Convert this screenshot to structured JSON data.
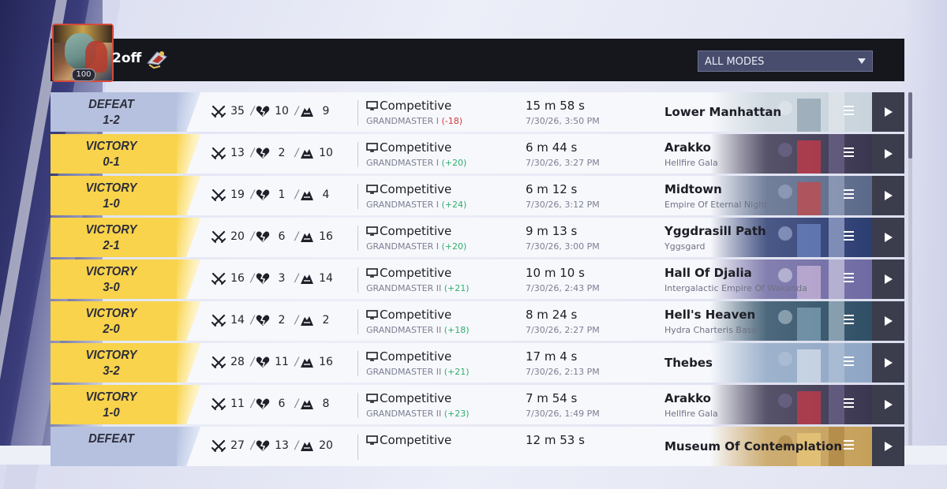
{
  "player": {
    "name": "2off",
    "level": "100"
  },
  "filter": {
    "selected": "ALL MODES"
  },
  "colors": {
    "victory": "#f8d34b",
    "defeat": "#b5c1df",
    "srGain": "#2fae6e",
    "srLoss": "#d8343a",
    "header": "#16171d"
  },
  "icons": {
    "kills": "crossed-swords-icon",
    "deaths": "broken-heart-icon",
    "assists": "assist-hands-icon",
    "mode": "monitor-icon",
    "details": "menu-lines-icon",
    "replay": "play-icon",
    "sort": "chevron-down-icon"
  },
  "matches": [
    {
      "result": "DEFEAT",
      "score": "1-2",
      "kills": "35",
      "deaths": "10",
      "assists": "9",
      "mode": "Competitive",
      "rank": "GRANDMASTER I",
      "delta": "(-18)",
      "duration": "15 m 58 s",
      "date": "7/30/26, 3:50 PM",
      "map": "Lower Manhattan",
      "zone": ""
    },
    {
      "result": "VICTORY",
      "score": "0-1",
      "kills": "13",
      "deaths": "2",
      "assists": "10",
      "mode": "Competitive",
      "rank": "GRANDMASTER I",
      "delta": "(+20)",
      "duration": "6 m 44 s",
      "date": "7/30/26, 3:27 PM",
      "map": "Arakko",
      "zone": "Hellfire Gala"
    },
    {
      "result": "VICTORY",
      "score": "1-0",
      "kills": "19",
      "deaths": "1",
      "assists": "4",
      "mode": "Competitive",
      "rank": "GRANDMASTER I",
      "delta": "(+24)",
      "duration": "6 m 12 s",
      "date": "7/30/26, 3:12 PM",
      "map": "Midtown",
      "zone": "Empire Of Eternal Night"
    },
    {
      "result": "VICTORY",
      "score": "2-1",
      "kills": "20",
      "deaths": "6",
      "assists": "16",
      "mode": "Competitive",
      "rank": "GRANDMASTER I",
      "delta": "(+20)",
      "duration": "9 m 13 s",
      "date": "7/30/26, 3:00 PM",
      "map": "Yggdrasill Path",
      "zone": "Yggsgard"
    },
    {
      "result": "VICTORY",
      "score": "3-0",
      "kills": "16",
      "deaths": "3",
      "assists": "14",
      "mode": "Competitive",
      "rank": "GRANDMASTER II",
      "delta": "(+21)",
      "duration": "10 m 10 s",
      "date": "7/30/26, 2:43 PM",
      "map": "Hall Of Djalia",
      "zone": "Intergalactic Empire Of Wakanda"
    },
    {
      "result": "VICTORY",
      "score": "2-0",
      "kills": "14",
      "deaths": "2",
      "assists": "2",
      "mode": "Competitive",
      "rank": "GRANDMASTER II",
      "delta": "(+18)",
      "duration": "8 m 24 s",
      "date": "7/30/26, 2:27 PM",
      "map": "Hell's Heaven",
      "zone": "Hydra Charteris Base"
    },
    {
      "result": "VICTORY",
      "score": "3-2",
      "kills": "28",
      "deaths": "11",
      "assists": "16",
      "mode": "Competitive",
      "rank": "GRANDMASTER II",
      "delta": "(+21)",
      "duration": "17 m 4 s",
      "date": "7/30/26, 2:13 PM",
      "map": "Thebes",
      "zone": ""
    },
    {
      "result": "VICTORY",
      "score": "1-0",
      "kills": "11",
      "deaths": "6",
      "assists": "8",
      "mode": "Competitive",
      "rank": "GRANDMASTER II",
      "delta": "(+23)",
      "duration": "7 m 54 s",
      "date": "7/30/26, 1:49 PM",
      "map": "Arakko",
      "zone": "Hellfire Gala"
    },
    {
      "result": "DEFEAT",
      "score": "",
      "kills": "27",
      "deaths": "13",
      "assists": "20",
      "mode": "Competitive",
      "rank": "",
      "delta": "",
      "duration": "12 m 53 s",
      "date": "",
      "map": "Museum Of Contemplation",
      "zone": ""
    }
  ]
}
